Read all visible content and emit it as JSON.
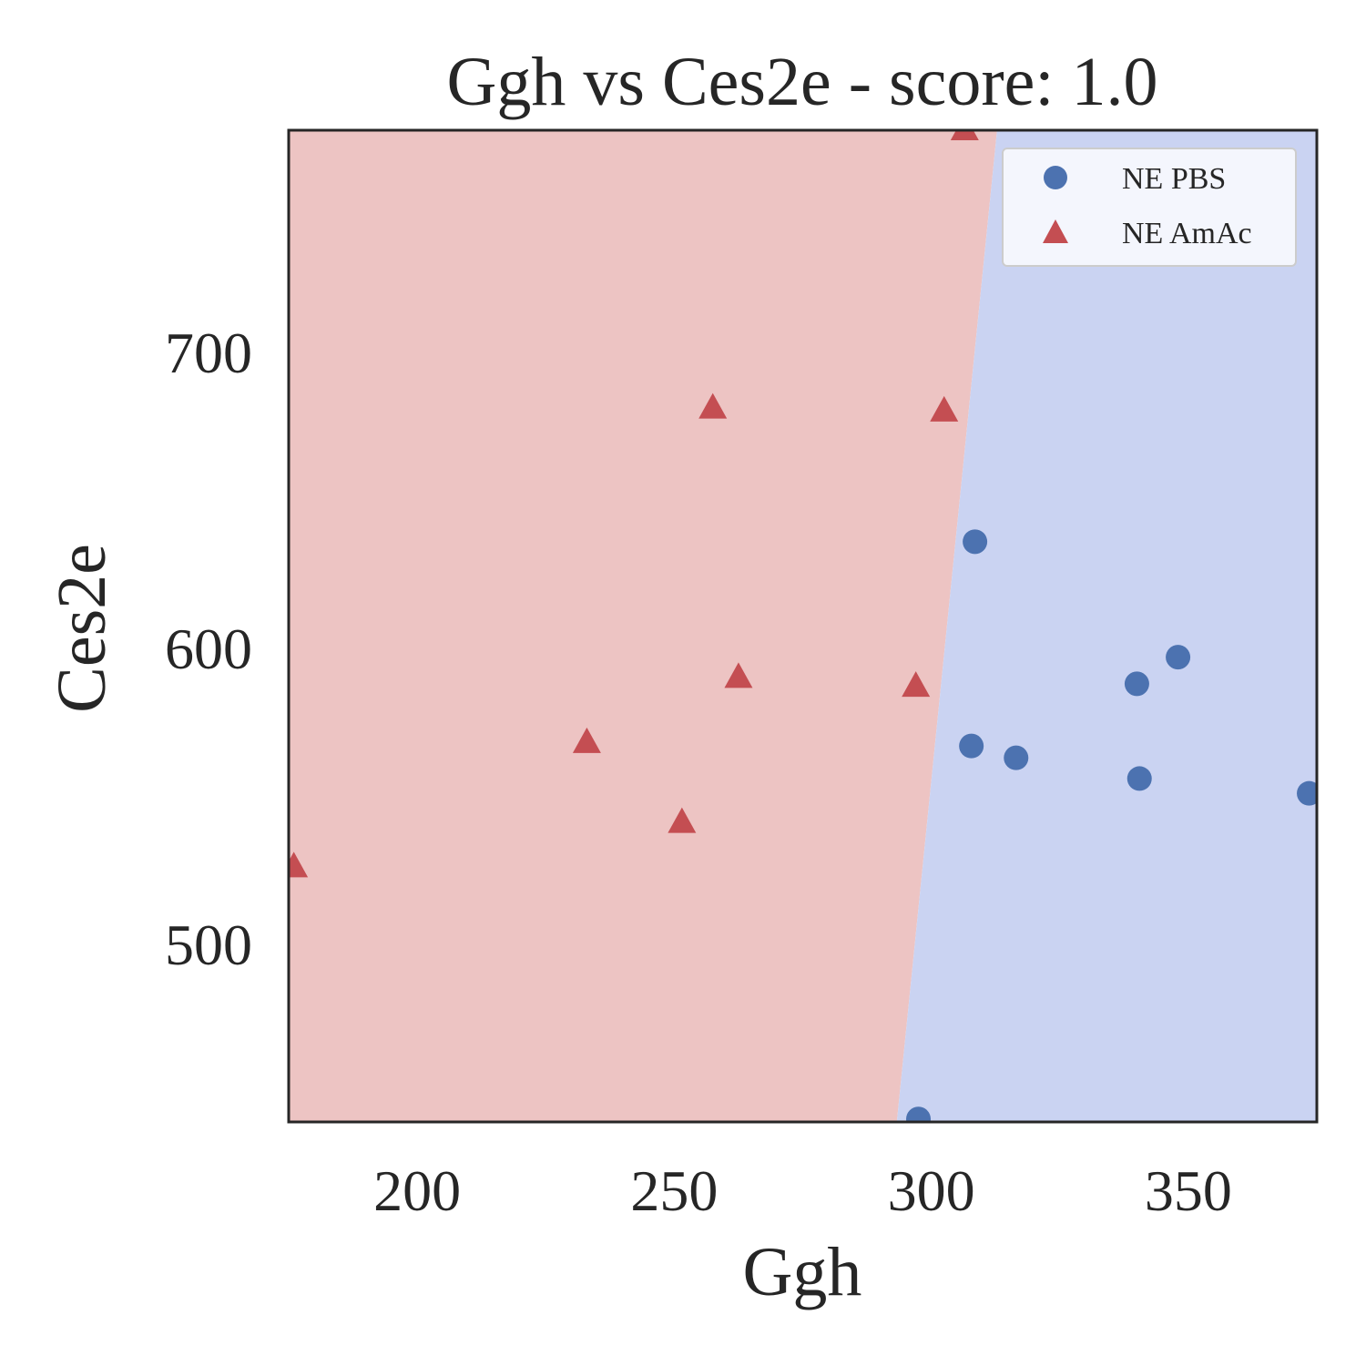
{
  "chart_data": {
    "type": "scatter",
    "title": "Ggh vs Ces2e - score: 1.0",
    "xlabel": "Ggh",
    "ylabel": "Ces2e",
    "xlim": [
      175,
      375
    ],
    "ylim": [
      440,
      775
    ],
    "xticks": [
      200,
      250,
      300,
      350
    ],
    "yticks": [
      500,
      600,
      700
    ],
    "grid": false,
    "legend_position": "top-right",
    "decision_boundary": {
      "points": [
        [
          293.3,
          440
        ],
        [
          312.8,
          775
        ]
      ],
      "left_region": "NE AmAc",
      "right_region": "NE PBS"
    },
    "series": [
      {
        "name": "NE PBS",
        "marker": "circle",
        "color": "#4c72b0",
        "region_color": "#cad3f2",
        "points": [
          [
            308.5,
            636
          ],
          [
            307.8,
            567
          ],
          [
            316.5,
            563
          ],
          [
            340,
            588
          ],
          [
            348,
            597
          ],
          [
            340.5,
            556
          ],
          [
            373.5,
            551
          ],
          [
            297.5,
            441
          ]
        ]
      },
      {
        "name": "NE AmAc",
        "marker": "triangle",
        "color": "#c44e52",
        "region_color": "#edc4c3",
        "points": [
          [
            306.5,
            775
          ],
          [
            257.5,
            681
          ],
          [
            302.5,
            680
          ],
          [
            262.5,
            590
          ],
          [
            297,
            587
          ],
          [
            233,
            568
          ],
          [
            251.5,
            541
          ],
          [
            176,
            526
          ]
        ]
      }
    ]
  }
}
